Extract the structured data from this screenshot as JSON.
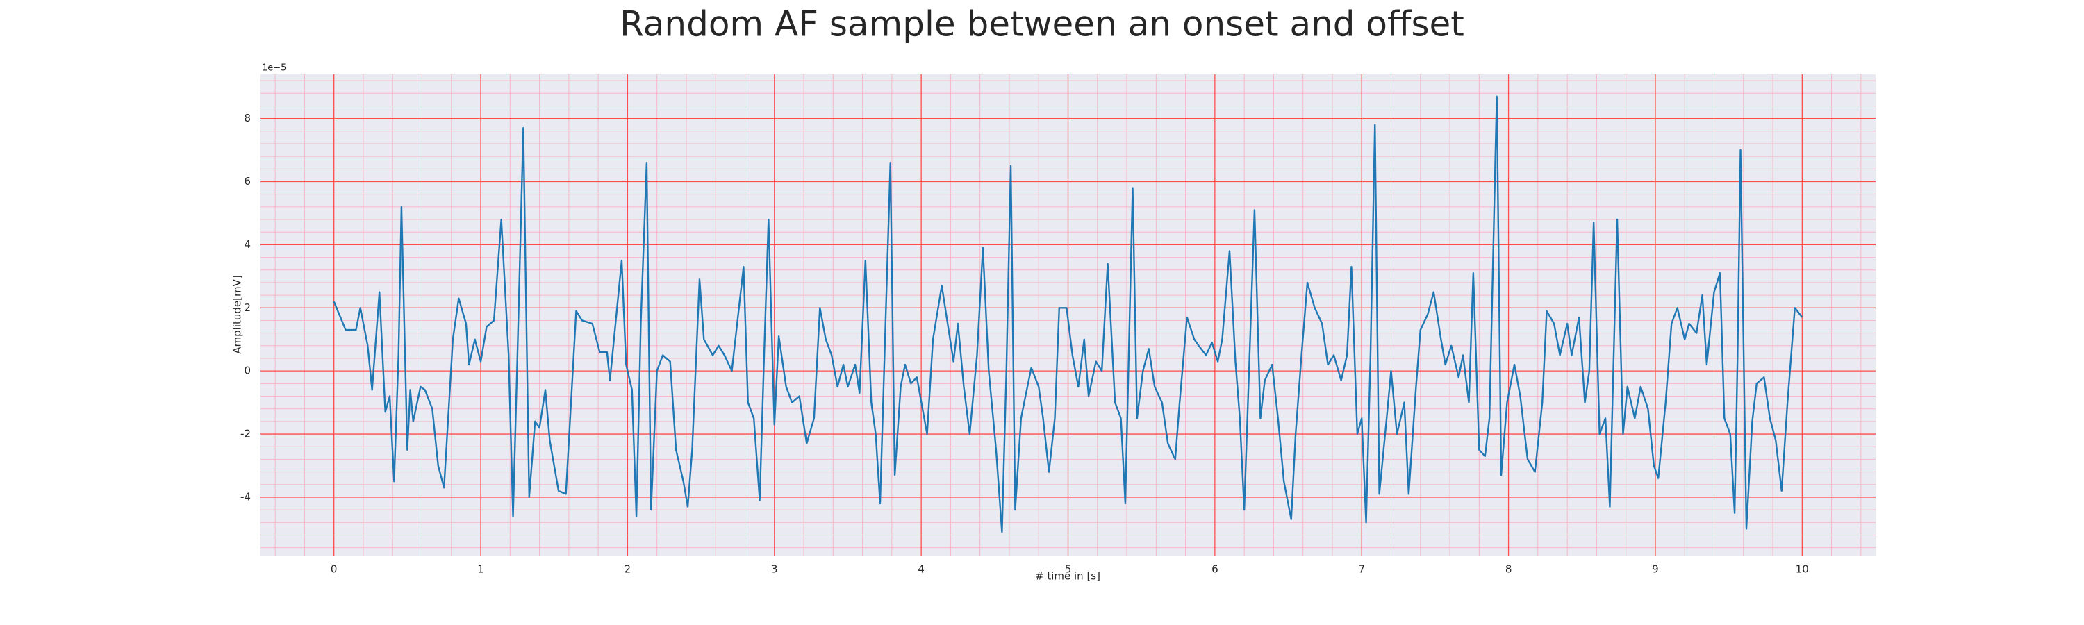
{
  "chart_data": {
    "type": "line",
    "title": "Random AF sample between an onset and offset",
    "xlabel": "# time in [s]",
    "ylabel": "Amplitude[mV]",
    "offset_label": "1e−5",
    "color": "#1f77b4",
    "background": "#eaeaf2",
    "grid": true,
    "grid_color": "#ff4d4d",
    "minor_grid": true,
    "minor_grid_color": "#f5b8c6",
    "xlim": [
      -0.5,
      10.5
    ],
    "ylim": [
      -5.85,
      9.4
    ],
    "xticks": [
      0,
      1,
      2,
      3,
      4,
      5,
      6,
      7,
      8,
      9,
      10
    ],
    "yticks": [
      -4,
      -2,
      0,
      2,
      4,
      6,
      8
    ],
    "x": [
      0,
      0.08,
      0.15,
      0.18,
      0.23,
      0.26,
      0.31,
      0.35,
      0.38,
      0.41,
      0.44,
      0.46,
      0.5,
      0.52,
      0.54,
      0.59,
      0.62,
      0.67,
      0.71,
      0.75,
      0.81,
      0.85,
      0.9,
      0.92,
      0.96,
      1.0,
      1.04,
      1.09,
      1.14,
      1.19,
      1.22,
      1.25,
      1.29,
      1.33,
      1.37,
      1.4,
      1.44,
      1.47,
      1.53,
      1.58,
      1.65,
      1.69,
      1.76,
      1.81,
      1.86,
      1.88,
      1.92,
      1.96,
      1.99,
      2.03,
      2.06,
      2.09,
      2.13,
      2.16,
      2.2,
      2.24,
      2.29,
      2.33,
      2.38,
      2.41,
      2.44,
      2.49,
      2.52,
      2.58,
      2.62,
      2.66,
      2.71,
      2.79,
      2.82,
      2.86,
      2.9,
      2.93,
      2.96,
      3.0,
      3.03,
      3.08,
      3.12,
      3.17,
      3.22,
      3.27,
      3.31,
      3.35,
      3.39,
      3.43,
      3.47,
      3.5,
      3.55,
      3.58,
      3.62,
      3.66,
      3.69,
      3.72,
      3.76,
      3.79,
      3.82,
      3.86,
      3.89,
      3.93,
      3.97,
      4.04,
      4.08,
      4.14,
      4.18,
      4.22,
      4.25,
      4.29,
      4.33,
      4.38,
      4.42,
      4.46,
      4.51,
      4.55,
      4.58,
      4.61,
      4.64,
      4.68,
      4.71,
      4.75,
      4.8,
      4.83,
      4.87,
      4.91,
      4.94,
      4.99,
      5.03,
      5.07,
      5.11,
      5.14,
      5.19,
      5.23,
      5.27,
      5.32,
      5.36,
      5.39,
      5.44,
      5.47,
      5.51,
      5.55,
      5.59,
      5.64,
      5.68,
      5.73,
      5.76,
      5.81,
      5.86,
      5.89,
      5.94,
      5.98,
      6.02,
      6.05,
      6.1,
      6.14,
      6.17,
      6.2,
      6.24,
      6.27,
      6.31,
      6.34,
      6.39,
      6.43,
      6.47,
      6.52,
      6.55,
      6.59,
      6.63,
      6.68,
      6.73,
      6.77,
      6.81,
      6.86,
      6.9,
      6.93,
      6.97,
      7.0,
      7.03,
      7.06,
      7.09,
      7.12,
      7.17,
      7.2,
      7.24,
      7.29,
      7.32,
      7.37,
      7.4,
      7.45,
      7.49,
      7.54,
      7.57,
      7.61,
      7.66,
      7.69,
      7.73,
      7.76,
      7.8,
      7.84,
      7.87,
      7.92,
      7.95,
      7.99,
      8.04,
      8.08,
      8.13,
      8.18,
      8.23,
      8.26,
      8.31,
      8.35,
      8.4,
      8.43,
      8.48,
      8.52,
      8.55,
      8.58,
      8.62,
      8.66,
      8.69,
      8.74,
      8.78,
      8.81,
      8.86,
      8.9,
      8.95,
      8.99,
      9.02,
      9.07,
      9.11,
      9.15,
      9.2,
      9.23,
      9.28,
      9.32,
      9.35,
      9.4,
      9.44,
      9.47,
      9.51,
      9.54,
      9.56,
      9.58,
      9.62,
      9.66,
      9.69,
      9.74,
      9.78,
      9.82,
      9.86,
      9.9,
      9.95,
      10.0
    ],
    "values": [
      2.2,
      1.3,
      1.3,
      2.0,
      0.8,
      -0.6,
      2.5,
      -1.3,
      -0.8,
      -3.5,
      0.5,
      5.2,
      -2.5,
      -0.6,
      -1.6,
      -0.5,
      -0.6,
      -1.2,
      -3.0,
      -3.7,
      1.0,
      2.3,
      1.5,
      0.2,
      1.0,
      0.3,
      1.4,
      1.6,
      4.8,
      0.5,
      -4.6,
      0.5,
      7.7,
      -4.0,
      -1.6,
      -1.8,
      -0.6,
      -2.2,
      -3.8,
      -3.9,
      1.9,
      1.6,
      1.5,
      0.6,
      0.6,
      -0.3,
      1.6,
      3.5,
      0.2,
      -0.6,
      -4.6,
      1.5,
      6.6,
      -4.4,
      0.0,
      0.5,
      0.3,
      -2.5,
      -3.5,
      -4.3,
      -2.5,
      2.9,
      1.0,
      0.5,
      0.8,
      0.5,
      0.0,
      3.3,
      -1.0,
      -1.5,
      -4.1,
      0.5,
      4.8,
      -1.7,
      1.1,
      -0.5,
      -1.0,
      -0.8,
      -2.3,
      -1.5,
      2.0,
      1.0,
      0.5,
      -0.5,
      0.2,
      -0.5,
      0.2,
      -0.7,
      3.5,
      -1.0,
      -2.0,
      -4.2,
      2.0,
      6.6,
      -3.3,
      -0.5,
      0.2,
      -0.4,
      -0.2,
      -2.0,
      1.0,
      2.7,
      1.5,
      0.3,
      1.5,
      -0.5,
      -2.0,
      0.5,
      3.9,
      0.0,
      -2.5,
      -5.1,
      0.0,
      6.5,
      -4.4,
      -1.5,
      -0.8,
      0.1,
      -0.5,
      -1.5,
      -3.2,
      -1.5,
      2.0,
      2.0,
      0.5,
      -0.5,
      1.0,
      -0.8,
      0.3,
      0.0,
      3.4,
      -1.0,
      -1.5,
      -4.2,
      5.8,
      -1.5,
      0.0,
      0.7,
      -0.5,
      -1.0,
      -2.3,
      -2.8,
      -1.0,
      1.7,
      1.0,
      0.8,
      0.5,
      0.9,
      0.3,
      1.0,
      3.8,
      0.3,
      -1.5,
      -4.4,
      1.0,
      5.1,
      -1.5,
      -0.3,
      0.2,
      -1.5,
      -3.5,
      -4.7,
      -2.0,
      0.5,
      2.8,
      2.0,
      1.5,
      0.2,
      0.5,
      -0.3,
      0.5,
      3.3,
      -2.0,
      -1.5,
      -4.8,
      0.5,
      7.8,
      -3.9,
      -1.5,
      0.0,
      -2.0,
      -1.0,
      -3.9,
      -0.5,
      1.3,
      1.8,
      2.5,
      1.0,
      0.2,
      0.8,
      -0.2,
      0.5,
      -1.0,
      3.1,
      -2.5,
      -2.7,
      -1.5,
      8.7,
      -3.3,
      -1.0,
      0.2,
      -0.8,
      -2.8,
      -3.2,
      -1.0,
      1.9,
      1.5,
      0.5,
      1.5,
      0.5,
      1.7,
      -1.0,
      0.0,
      4.7,
      -2.0,
      -1.5,
      -4.3,
      4.8,
      -2.0,
      -0.5,
      -1.5,
      -0.5,
      -1.2,
      -3.0,
      -3.4,
      -1.0,
      1.5,
      2.0,
      1.0,
      1.5,
      1.2,
      2.4,
      0.2,
      2.5,
      3.1,
      -1.5,
      -2.0,
      -4.5,
      0.5,
      7.0,
      -5.0,
      -1.6,
      -0.4,
      -0.2,
      -1.5,
      -2.2,
      -3.8,
      -1.0,
      2.0,
      1.7
    ]
  }
}
